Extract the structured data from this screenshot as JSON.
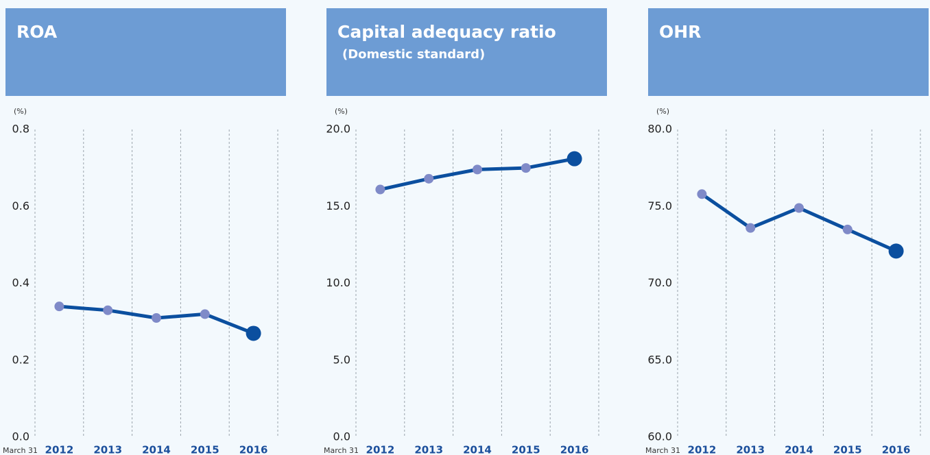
{
  "chart_data": [
    {
      "type": "line",
      "title": "ROA",
      "ylabel": "(%)",
      "xlabel": "March 31",
      "categories": [
        "2012",
        "2013",
        "2014",
        "2015",
        "2016"
      ],
      "values": [
        0.34,
        0.33,
        0.31,
        0.32,
        0.27
      ],
      "color": "#0b4f9f",
      "point_color": "#7f8ac8",
      "highlight_color": "#0b4f9f",
      "ylim": [
        0,
        0.8
      ],
      "yticks": [
        {
          "value": 0,
          "label": "0.0"
        },
        0.2,
        0.4,
        0.6,
        0.8
      ]
    },
    {
      "type": "line",
      "title": "Capital adequacy ratio",
      "subtitle": "(Domestic standard)",
      "ylabel": "(%)",
      "xlabel": "March 31",
      "categories": [
        "2012",
        "2013",
        "2014",
        "2015",
        "2016"
      ],
      "values": [
        16.1,
        16.8,
        17.4,
        17.5,
        18.1
      ],
      "color": "#0b4f9f",
      "point_color": "#7f8ac8",
      "highlight_color": "#0b4f9f",
      "ylim": [
        0,
        20
      ],
      "yticks": [
        {
          "value": 0,
          "label": "0.0"
        },
        {
          "value": 5,
          "label": "5.0"
        },
        {
          "value": 10,
          "label": "10.0"
        },
        {
          "value": 15,
          "label": "15.0"
        },
        {
          "value": 20,
          "label": "20.0"
        }
      ]
    },
    {
      "type": "line",
      "title": "OHR",
      "ylabel": "(%)",
      "xlabel": "March 31",
      "categories": [
        "2012",
        "2013",
        "2014",
        "2015",
        "2016"
      ],
      "values": [
        75.8,
        73.6,
        74.9,
        73.5,
        72.1
      ],
      "color": "#0b4f9f",
      "point_color": "#7f8ac8",
      "highlight_color": "#0b4f9f",
      "ylim": [
        60,
        80
      ],
      "yticks": [
        {
          "value": 60,
          "label": "60.0"
        },
        {
          "value": 65,
          "label": "65.0"
        },
        {
          "value": 70,
          "label": "70.0"
        },
        {
          "value": 75,
          "label": "75.0"
        },
        {
          "value": 80,
          "label": "80.0"
        }
      ]
    }
  ]
}
